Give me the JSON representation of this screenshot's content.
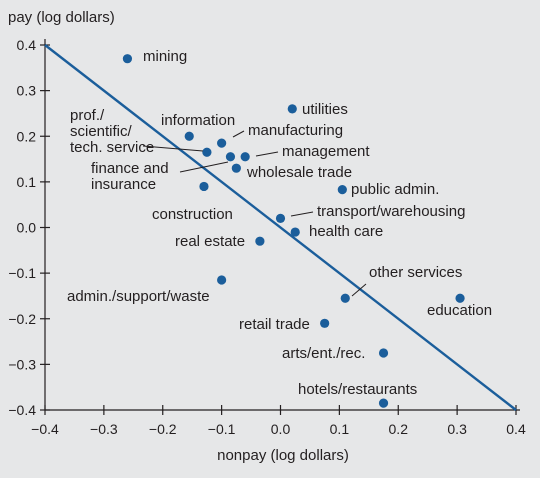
{
  "chart_data": {
    "type": "scatter",
    "ylabel": "pay (log dollars)",
    "xlabel": "nonpay (log dollars)",
    "xlim": [
      -0.4,
      0.4
    ],
    "ylim": [
      -0.4,
      0.4
    ],
    "xticks": [
      -0.4,
      -0.3,
      -0.2,
      -0.1,
      0.0,
      0.1,
      0.2,
      0.3,
      0.4
    ],
    "xtick_labels": [
      "−0.4",
      "−0.3",
      "−0.2",
      "−0.1",
      "0.0",
      "0.1",
      "0.2",
      "0.3",
      "0.4"
    ],
    "yticks": [
      0.4,
      0.3,
      0.2,
      0.1,
      0.0,
      -0.1,
      -0.2,
      -0.3,
      -0.4
    ],
    "ytick_labels": [
      "0.4",
      "0.3",
      "0.2",
      "0.1",
      "0.0",
      "−0.1",
      "−0.2",
      "−0.3",
      "−0.4"
    ],
    "grid": false,
    "line": {
      "x": [
        -0.4,
        0.4
      ],
      "y": [
        0.4,
        -0.4
      ]
    },
    "points": [
      {
        "label": "mining",
        "x": -0.26,
        "y": 0.37
      },
      {
        "label": "utilities",
        "x": 0.02,
        "y": 0.26
      },
      {
        "label": "information",
        "x": -0.155,
        "y": 0.2
      },
      {
        "label": "manufacturing",
        "x": -0.1,
        "y": 0.185
      },
      {
        "label": "prof./\nscientific/\ntech. service",
        "x": -0.125,
        "y": 0.165
      },
      {
        "label": "management",
        "x": -0.06,
        "y": 0.155
      },
      {
        "label": "finance and\ninsurance",
        "x": -0.085,
        "y": 0.155
      },
      {
        "label": "wholesale trade",
        "x": -0.075,
        "y": 0.13
      },
      {
        "label": "public admin.",
        "x": 0.105,
        "y": 0.083
      },
      {
        "label": "construction",
        "x": -0.13,
        "y": 0.09
      },
      {
        "label": "transport/warehousing",
        "x": 0.0,
        "y": 0.02
      },
      {
        "label": "health care",
        "x": 0.025,
        "y": -0.01
      },
      {
        "label": "real estate",
        "x": -0.035,
        "y": -0.03
      },
      {
        "label": "other services",
        "x": 0.11,
        "y": -0.155
      },
      {
        "label": "education",
        "x": 0.305,
        "y": -0.155
      },
      {
        "label": "admin./support/waste",
        "x": -0.1,
        "y": -0.115
      },
      {
        "label": "retail trade",
        "x": 0.075,
        "y": -0.21
      },
      {
        "label": "arts/ent./rec.",
        "x": 0.175,
        "y": -0.275
      },
      {
        "label": "hotels/restaurants",
        "x": 0.175,
        "y": -0.385
      }
    ]
  }
}
